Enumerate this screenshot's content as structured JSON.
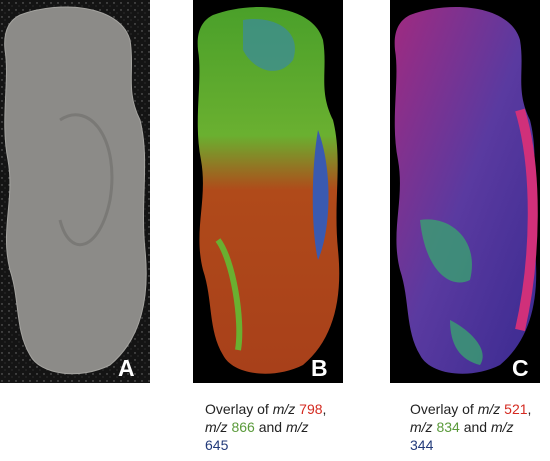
{
  "panels": [
    {
      "label": "A"
    },
    {
      "label": "B",
      "caption": [
        [
          {
            "text": "Overlay of "
          },
          {
            "text": "m/z",
            "italic": true
          },
          {
            "text": " "
          },
          {
            "text": "798",
            "color": "#d42a20"
          },
          {
            "text": ","
          }
        ],
        [
          {
            "text": "m/z",
            "italic": true
          },
          {
            "text": " "
          },
          {
            "text": "866",
            "color": "#5a9a3a"
          },
          {
            "text": " and "
          },
          {
            "text": "m/z",
            "italic": true
          }
        ],
        [
          {
            "text": "645",
            "color": "#223a7a"
          }
        ]
      ]
    },
    {
      "label": "C",
      "caption": [
        [
          {
            "text": "Overlay of "
          },
          {
            "text": "m/z",
            "italic": true
          },
          {
            "text": " "
          },
          {
            "text": "521",
            "color": "#d42a20"
          },
          {
            "text": ","
          }
        ],
        [
          {
            "text": "m/z",
            "italic": true
          },
          {
            "text": " "
          },
          {
            "text": "834",
            "color": "#5a9a3a"
          },
          {
            "text": " and "
          },
          {
            "text": "m/z",
            "italic": true
          }
        ],
        [
          {
            "text": "344",
            "color": "#223a7a"
          }
        ]
      ]
    }
  ]
}
